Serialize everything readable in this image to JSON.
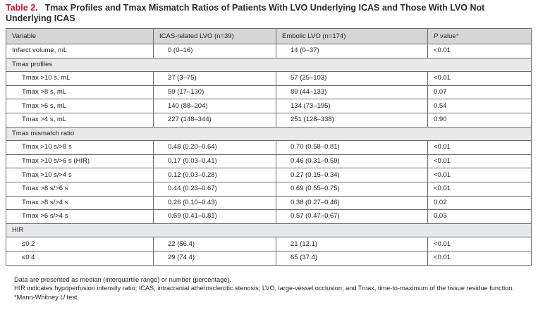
{
  "title": {
    "label": "Table 2.",
    "text": "Tmax Profiles and Tmax Mismatch Ratios of Patients With LVO Underlying ICAS and Those With LVO Not Underlying ICAS"
  },
  "headers": {
    "variable": "Variable",
    "icas": "ICAS-related LVO (n=39)",
    "embolic": "Embolic LVO (n=174)",
    "p_italic": "P",
    "p_rest": " value",
    "p_mark": "*"
  },
  "rows": [
    {
      "variable": "Infarct volume, mL",
      "icas": "0 (0–16)",
      "embolic": "14 (0–37)",
      "p": "<0.01"
    },
    {
      "section": "Tmax profiles"
    },
    {
      "variable": "Tmax >10 s, mL",
      "icas": "27 (3–75)",
      "embolic": "57 (25–103)",
      "p": "<0.01"
    },
    {
      "variable": "Tmax >8 s, mL",
      "icas": "59 (17–130)",
      "embolic": "89 (44–133)",
      "p": "0.07"
    },
    {
      "variable": "Tmax >6 s, mL",
      "icas": "140 (88–204)",
      "embolic": "134 (73–195)",
      "p": "0.54"
    },
    {
      "variable": "Tmax >4 s, mL",
      "icas": "227 (148–344)",
      "embolic": "251 (128–338)",
      "p": "0.90"
    },
    {
      "section": "Tmax mismatch ratio"
    },
    {
      "variable": "Tmax >10 s/>8 s",
      "icas": "0.48 (0.20–0.64)",
      "embolic": "0.70 (0.58–0.81)",
      "p": "<0.01"
    },
    {
      "variable": "Tmax >10 s/>6 s (HIR)",
      "icas": "0.17 (0.03–0.41)",
      "embolic": "0.46 (0.31–0.59)",
      "p": "<0.01"
    },
    {
      "variable": "Tmax >10 s/>4 s",
      "icas": "0.12 (0.03–0.28)",
      "embolic": "0.27 (0.15–0.34)",
      "p": "<0.01"
    },
    {
      "variable": "Tmax >8 s/>6 s",
      "icas": "0.44 (0.23–0.67)",
      "embolic": "0.69 (0.55–0.75)",
      "p": "<0.01"
    },
    {
      "variable": "Tmax >8 s/>4 s",
      "icas": "0.26 (0.10–0.43)",
      "embolic": "0.38 (0.27–0.46)",
      "p": "0.02"
    },
    {
      "variable": "Tmax >6 s/>4 s",
      "icas": "0.69 (0.41–0.81)",
      "embolic": "0.57 (0.47–0.67)",
      "p": "0.03"
    },
    {
      "section": "HIR"
    },
    {
      "variable": "≤0.2",
      "icas": "22 (56.4)",
      "embolic": "21 (12.1)",
      "p": "<0.01"
    },
    {
      "variable": "≤0.4",
      "icas": "29 (74.4)",
      "embolic": "65 (37.4)",
      "p": "<0.01"
    }
  ],
  "notes": {
    "line1": "Data are presented as median (interquartile range) or number (percentage).",
    "line2": "HIR indicates hypoperfusion intensity ratio; ICAS, intracranial atherosclerotic stenosis; LVO, large-vessel occlusion; and Tmax, time-to-maximum of the tissue residue function.",
    "line3_prefix": "*Mann-Whitney ",
    "line3_italic": "U",
    "line3_suffix": " test."
  },
  "colors": {
    "title_label": "#c8102e",
    "header_bg": "#d5d6d8",
    "section_bg": "#e7e8ea",
    "border": "#6b6b6b"
  }
}
